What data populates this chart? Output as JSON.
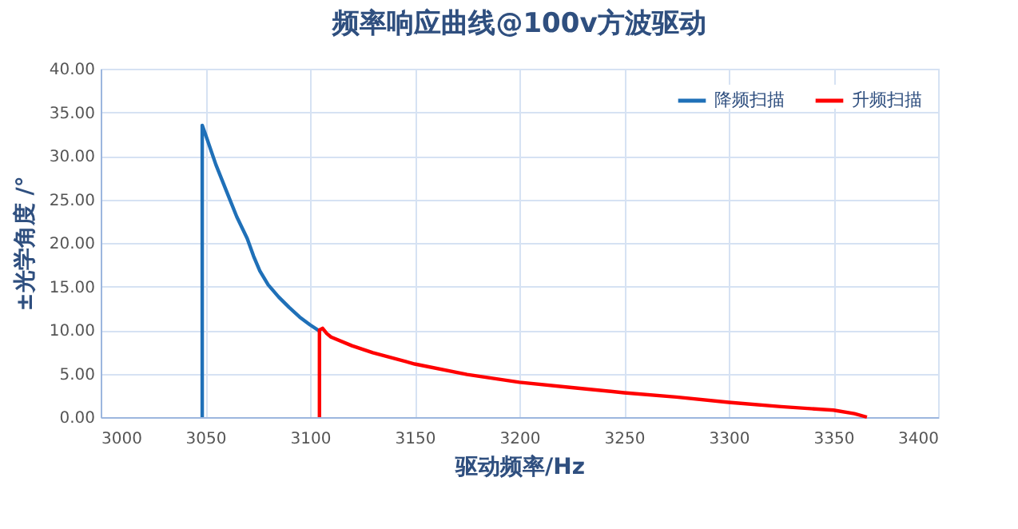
{
  "chart_data": {
    "type": "line",
    "title": "频率响应曲线@100v方波驱动",
    "xlabel": "驱动频率/Hz",
    "ylabel": "±光学角度 /°",
    "xlim": [
      3000,
      3400
    ],
    "xticks": [
      3000,
      3050,
      3100,
      3150,
      3200,
      3250,
      3300,
      3350,
      3400
    ],
    "ylim": [
      0,
      40
    ],
    "yticks": [
      {
        "value": 0,
        "label": "0.00"
      },
      {
        "value": 5,
        "label": "5.00"
      },
      {
        "value": 10,
        "label": "10.00"
      },
      {
        "value": 15,
        "label": "15.00"
      },
      {
        "value": 20,
        "label": "20.00"
      },
      {
        "value": 25,
        "label": "25.00"
      },
      {
        "value": 30,
        "label": "30.00"
      },
      {
        "value": 35,
        "label": "35.00"
      },
      {
        "value": 40,
        "label": "40.00"
      }
    ],
    "grid": true,
    "legend": "top right",
    "marker": "none",
    "line_style": "solid",
    "series": [
      {
        "name": "降频扫描",
        "color": "#1f70b8",
        "x": [
          3048.5,
          3048.5,
          3050,
          3055,
          3060,
          3065,
          3070,
          3073,
          3076,
          3080,
          3085,
          3090,
          3095,
          3100,
          3105
        ],
        "values": [
          0,
          33.5,
          32.5,
          29,
          26,
          23,
          20.5,
          18.5,
          16.8,
          15.2,
          13.8,
          12.6,
          11.5,
          10.6,
          9.8
        ]
      },
      {
        "name": "升频扫描",
        "color": "#ff0000",
        "x": [
          3104.5,
          3104.5,
          3106,
          3108,
          3110,
          3120,
          3130,
          3150,
          3175,
          3200,
          3225,
          3250,
          3275,
          3300,
          3325,
          3350,
          3360,
          3366
        ],
        "values": [
          0,
          10,
          10.2,
          9.6,
          9.2,
          8.2,
          7.4,
          6.1,
          4.9,
          4.0,
          3.4,
          2.8,
          2.3,
          1.7,
          1.2,
          0.8,
          0.4,
          0
        ]
      }
    ]
  }
}
